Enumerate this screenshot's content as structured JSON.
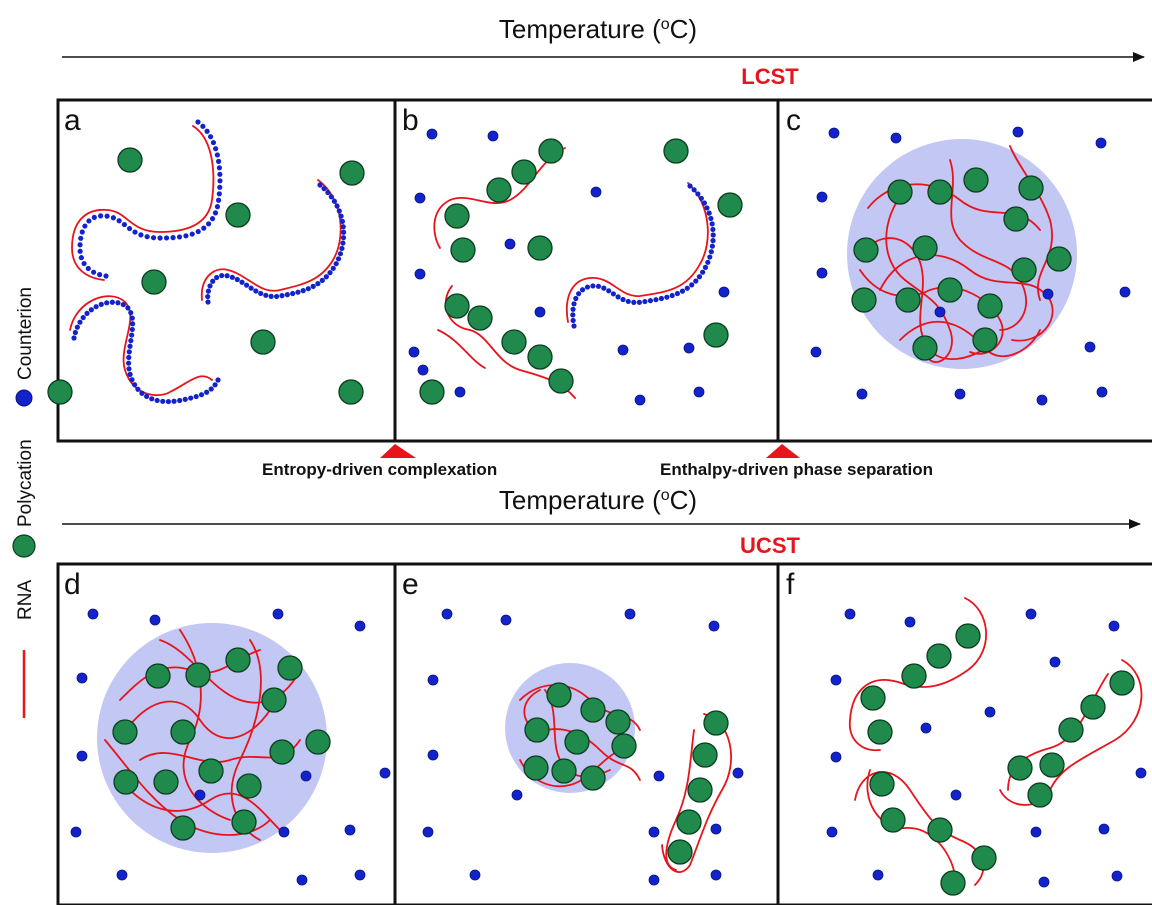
{
  "top_axis": {
    "label": "Temperature (",
    "sup": "o",
    "close": "C)"
  },
  "bottom_axis": {
    "label": "Temperature (",
    "sup": "o",
    "close": "C)"
  },
  "lcst_label": "LCST",
  "ucst_label": "UCST",
  "panels": [
    "a",
    "b",
    "c",
    "d",
    "e",
    "f"
  ],
  "annotations": {
    "left": "Entropy-driven complexation",
    "right": "Enthalpy-driven phase separation"
  },
  "legend": {
    "counterion": "Counterion",
    "polycation": "Polycation",
    "rna": "RNA"
  },
  "colors": {
    "rna": "#e8141b",
    "polycation_fill": "#1f8a4c",
    "counterion": "#1323cc",
    "condensate": "#b9bdf2",
    "accent": "#e8141b"
  }
}
